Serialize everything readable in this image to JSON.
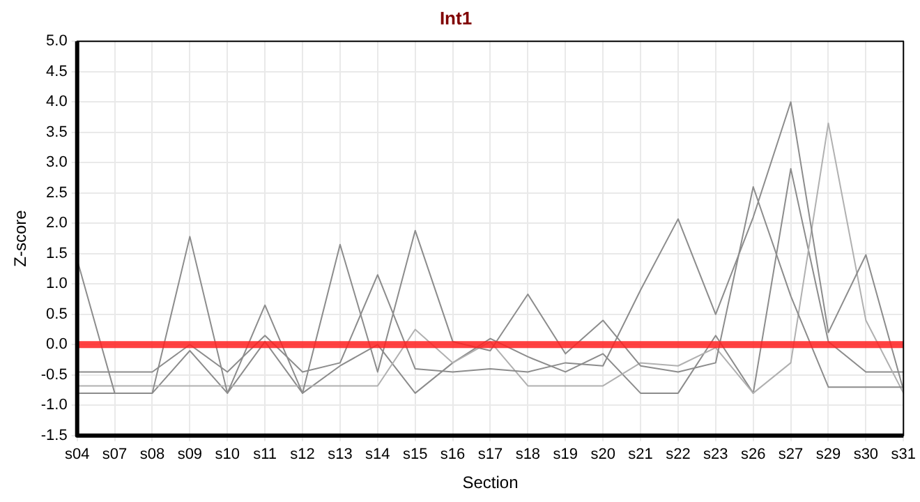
{
  "chart_data": {
    "type": "line",
    "title": "Int1",
    "xlabel": "Section",
    "ylabel": "Z-score",
    "categories": [
      "s04",
      "s07",
      "s08",
      "s09",
      "s10",
      "s11",
      "s12",
      "s13",
      "s14",
      "s15",
      "s16",
      "s17",
      "s18",
      "s19",
      "s20",
      "s21",
      "s22",
      "s23",
      "s26",
      "s27",
      "s29",
      "s30",
      "s31"
    ],
    "series": [
      {
        "color": "#8c8c8c",
        "values": [
          1.4,
          -0.8,
          -0.8,
          1.78,
          -0.8,
          0.65,
          -0.8,
          1.65,
          -0.45,
          1.88,
          0.05,
          -0.1,
          0.83,
          -0.15,
          0.4,
          -0.35,
          -0.45,
          -0.3,
          2.6,
          0.8,
          -0.7,
          -0.7,
          -0.7
        ]
      },
      {
        "color": "#8c8c8c",
        "values": [
          -0.45,
          -0.45,
          -0.45,
          0.0,
          -0.45,
          0.15,
          -0.45,
          -0.3,
          1.15,
          -0.4,
          -0.45,
          -0.4,
          -0.45,
          -0.3,
          -0.35,
          0.9,
          2.07,
          0.5,
          2.1,
          4.0,
          0.2,
          1.48,
          -0.75
        ]
      },
      {
        "color": "#b0b0b0",
        "values": [
          -0.68,
          -0.68,
          -0.68,
          -0.68,
          -0.68,
          -0.68,
          -0.68,
          -0.68,
          -0.68,
          0.25,
          -0.3,
          0.05,
          -0.68,
          -0.68,
          -0.68,
          -0.3,
          -0.35,
          -0.05,
          -0.8,
          -0.3,
          3.65,
          0.4,
          -0.8
        ]
      },
      {
        "color": "#8c8c8c",
        "values": [
          -0.8,
          -0.8,
          -0.8,
          -0.1,
          -0.8,
          0.05,
          -0.8,
          -0.35,
          0.0,
          -0.8,
          -0.3,
          0.1,
          -0.2,
          -0.45,
          -0.15,
          -0.8,
          -0.8,
          0.15,
          -0.8,
          2.9,
          0.05,
          -0.45,
          -0.45
        ]
      }
    ],
    "ref_lines": [
      {
        "axis": "y",
        "value": 0,
        "color": "#ff2020"
      }
    ],
    "ylim": [
      -1.5,
      5
    ],
    "yticks": [
      {
        "value": -1.5,
        "label": "-1.5"
      },
      {
        "value": -1,
        "label": "-1.0"
      },
      {
        "value": -0.5,
        "label": "-0.5"
      },
      {
        "value": 0,
        "label": "0.0"
      },
      {
        "value": 0.5,
        "label": "0.5"
      },
      {
        "value": 1,
        "label": "1.0"
      },
      {
        "value": 1.5,
        "label": "1.5"
      },
      {
        "value": 2,
        "label": "2.0"
      },
      {
        "value": 2.5,
        "label": "2.5"
      },
      {
        "value": 3,
        "label": "3.0"
      },
      {
        "value": 3.5,
        "label": "3.5"
      },
      {
        "value": 4,
        "label": "4.0"
      },
      {
        "value": 4.5,
        "label": "4.5"
      },
      {
        "value": 5,
        "label": "5.0"
      }
    ],
    "grid": true,
    "legend": false,
    "marker": "none",
    "line_style": "solid"
  }
}
